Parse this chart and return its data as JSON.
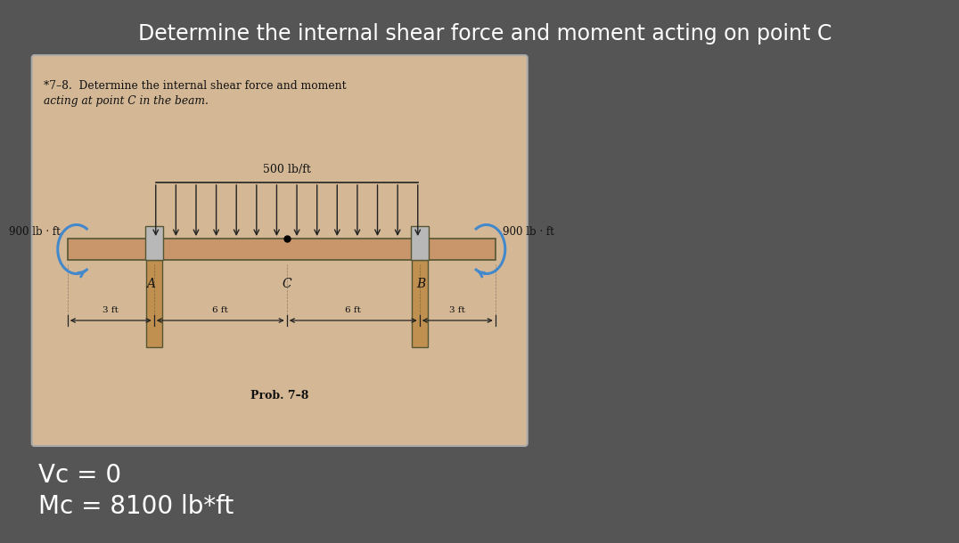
{
  "title": "Determine the internal shear force and moment acting on point C",
  "bg_color": "#555555",
  "panel_bg": "#d4b896",
  "title_color": "#ffffff",
  "title_fontsize": 17,
  "problem_line1": "*7–8.  Determine the internal shear force and moment",
  "problem_line2": "acting at point C in the beam.",
  "beam_color": "#c8966a",
  "beam_dark": "#a07040",
  "support_color": "#c09050",
  "label_500": "500 lb/ft",
  "label_900_left": "900 lb · ft",
  "label_900_right": "900 lb · ft",
  "label_A": "A",
  "label_B": "B",
  "label_C": "C",
  "dim_3ft": "3 ft",
  "dim_6ft": "6 ft",
  "prob_label": "Prob. 7–8",
  "result_vc": "Vc = 0",
  "result_mc": "Mc = 8100 lb*ft",
  "result_color": "#ffffff",
  "result_fontsize": 20,
  "arrow_color": "#4488cc",
  "dim_arrow_color": "#222222"
}
